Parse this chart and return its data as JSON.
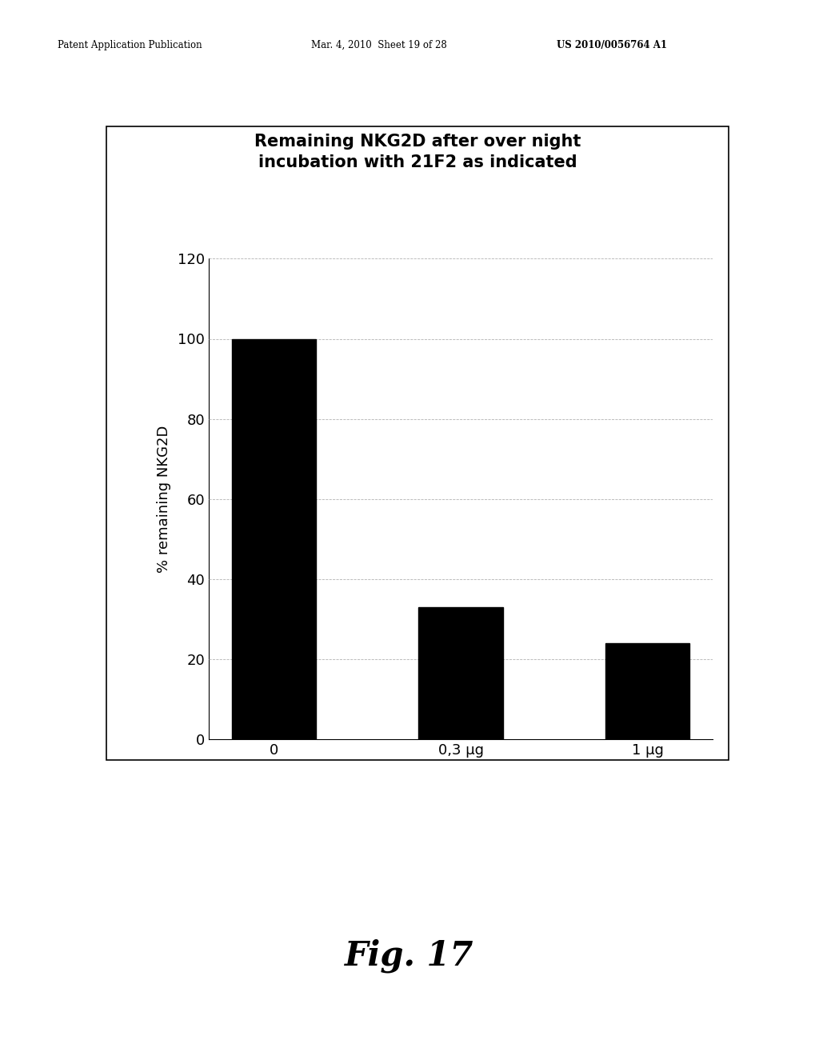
{
  "title_line1": "Remaining NKG2D after over night",
  "title_line2": "incubation with 21F2 as indicated",
  "categories": [
    "0",
    "0,3 μg",
    "1 μg"
  ],
  "values": [
    100,
    33,
    24
  ],
  "bar_color": "#000000",
  "ylabel": "% remaining NKG2D",
  "ylim": [
    0,
    120
  ],
  "yticks": [
    0,
    20,
    40,
    60,
    80,
    100,
    120
  ],
  "background_color": "#ffffff",
  "chart_bg": "#ffffff",
  "grid_color": "#aaaaaa",
  "header_left": "Patent Application Publication",
  "header_mid": "Mar. 4, 2010  Sheet 19 of 28",
  "header_right": "US 2010/0056764 A1",
  "fig_label": "Fig. 17",
  "bar_width": 0.45
}
